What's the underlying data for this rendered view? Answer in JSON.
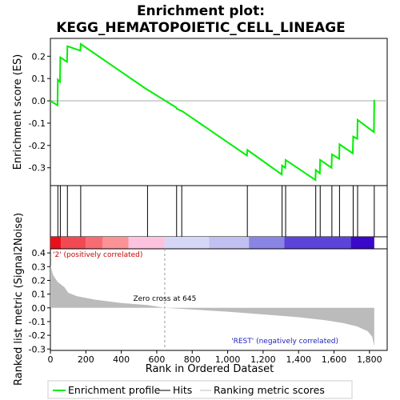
{
  "chart_data": {
    "type": "line",
    "title_line1": "Enrichment plot:",
    "title_line2": "KEGG_HEMATOPOIETIC_CELL_LINEAGE",
    "xlabel": "Rank in Ordered Dataset",
    "ylabel_top": "Enrichment score (ES)",
    "ylabel_bottom": "Ranked list metric (Signal2Noise)",
    "xlim": [
      0,
      1900
    ],
    "x_ticks": [
      "0",
      "200",
      "400",
      "600",
      "800",
      "1,000",
      "1,200",
      "1,400",
      "1,600",
      "1,800"
    ],
    "es_ylim": [
      -0.38,
      0.28
    ],
    "es_ticks": [
      "0.2",
      "0.1",
      "0.0",
      "-0.1",
      "-0.2",
      "-0.3"
    ],
    "metric_ylim": [
      -0.31,
      0.43
    ],
    "metric_ticks": [
      "0.4",
      "0.3",
      "0.2",
      "0.1",
      "0.0",
      "-0.1",
      "-0.2",
      "-0.3"
    ],
    "hits": [
      42,
      56,
      96,
      171,
      548,
      712,
      741,
      1111,
      1307,
      1327,
      1497,
      1522,
      1588,
      1631,
      1708,
      1733,
      1827
    ],
    "es_points": [
      [
        0,
        0.0
      ],
      [
        40,
        -0.02
      ],
      [
        42,
        0.095
      ],
      [
        54,
        0.085
      ],
      [
        56,
        0.195
      ],
      [
        94,
        0.175
      ],
      [
        96,
        0.245
      ],
      [
        169,
        0.225
      ],
      [
        171,
        0.255
      ],
      [
        546,
        0.05
      ],
      [
        548,
        0.05
      ],
      [
        710,
        -0.03
      ],
      [
        712,
        -0.035
      ],
      [
        739,
        -0.045
      ],
      [
        741,
        -0.045
      ],
      [
        1109,
        -0.245
      ],
      [
        1111,
        -0.22
      ],
      [
        1305,
        -0.33
      ],
      [
        1307,
        -0.29
      ],
      [
        1325,
        -0.3
      ],
      [
        1327,
        -0.265
      ],
      [
        1495,
        -0.355
      ],
      [
        1497,
        -0.31
      ],
      [
        1520,
        -0.325
      ],
      [
        1522,
        -0.265
      ],
      [
        1586,
        -0.3
      ],
      [
        1588,
        -0.24
      ],
      [
        1629,
        -0.26
      ],
      [
        1631,
        -0.195
      ],
      [
        1706,
        -0.235
      ],
      [
        1708,
        -0.16
      ],
      [
        1731,
        -0.17
      ],
      [
        1733,
        -0.085
      ],
      [
        1825,
        -0.14
      ],
      [
        1827,
        0.005
      ]
    ],
    "metric_points": [
      [
        0,
        0.31
      ],
      [
        15,
        0.24
      ],
      [
        40,
        0.19
      ],
      [
        80,
        0.15
      ],
      [
        100,
        0.11
      ],
      [
        150,
        0.085
      ],
      [
        250,
        0.06
      ],
      [
        400,
        0.035
      ],
      [
        550,
        0.02
      ],
      [
        645,
        0.0
      ],
      [
        800,
        -0.012
      ],
      [
        1000,
        -0.028
      ],
      [
        1200,
        -0.048
      ],
      [
        1400,
        -0.068
      ],
      [
        1550,
        -0.09
      ],
      [
        1650,
        -0.11
      ],
      [
        1730,
        -0.135
      ],
      [
        1790,
        -0.17
      ],
      [
        1815,
        -0.21
      ],
      [
        1827,
        -0.28
      ]
    ],
    "zero_cross_label": "Zero cross at 645",
    "zero_cross_rank": 645,
    "pos_label": "'2' (positively correlated)",
    "neg_label": "'REST' (negatively correlated)",
    "heat_segments": [
      {
        "from": 0,
        "to": 60,
        "color": "#e8101c"
      },
      {
        "from": 60,
        "to": 200,
        "color": "#f24a52"
      },
      {
        "from": 200,
        "to": 295,
        "color": "#f76c72"
      },
      {
        "from": 295,
        "to": 440,
        "color": "#fa9296"
      },
      {
        "from": 440,
        "to": 645,
        "color": "#fcc2de"
      },
      {
        "from": 645,
        "to": 895,
        "color": "#d6d6f6"
      },
      {
        "from": 895,
        "to": 1120,
        "color": "#c2c0f0"
      },
      {
        "from": 1120,
        "to": 1320,
        "color": "#8a84e4"
      },
      {
        "from": 1320,
        "to": 1695,
        "color": "#5c44d8"
      },
      {
        "from": 1695,
        "to": 1827,
        "color": "#3a08c8"
      }
    ],
    "es_color": "#00ee00",
    "legend": [
      {
        "label": "Enrichment profile",
        "color": "#00ee00"
      },
      {
        "label": "Hits",
        "color": "#000000"
      },
      {
        "label": "Ranking metric scores",
        "color": "#bbbbbb"
      }
    ]
  }
}
